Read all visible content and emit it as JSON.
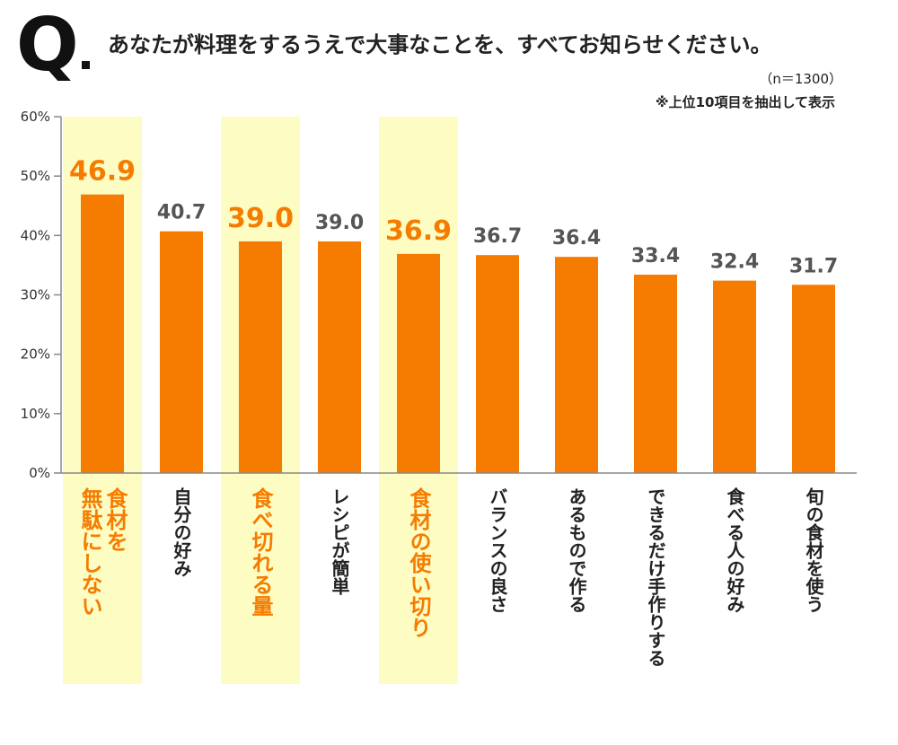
{
  "header": {
    "q_label": "Q",
    "title": "あなたが料理をするうえで大事なことを、すべてお知らせください。",
    "sample_size": "（n＝1300）",
    "note": "※上位10項目を抽出して表示"
  },
  "colors": {
    "bar": "#f57c00",
    "highlight_band": "#fdfcc2",
    "highlight_text": "#f57c00",
    "normal_value_text": "#555555",
    "normal_category_text": "#222222",
    "axis": "#888888"
  },
  "chart_data": {
    "type": "bar",
    "title": "あなたが料理をするうえで大事なことを、すべてお知らせください。",
    "xlabel": "",
    "ylabel": "",
    "ylim": [
      0,
      60
    ],
    "yticks": [
      0,
      10,
      20,
      30,
      40,
      50,
      60
    ],
    "ytick_labels": [
      "0%",
      "10%",
      "20%",
      "30%",
      "40%",
      "50%",
      "60%"
    ],
    "grid": false,
    "categories": [
      "食材を無駄にしない",
      "自分の好み",
      "食べ切れる量",
      "レシピが簡単",
      "食材の使い切り",
      "バランスの良さ",
      "あるもので作る",
      "できるだけ手作りする",
      "食べる人の好み",
      "旬の食材を使う"
    ],
    "category_lines": [
      [
        "食材を",
        "無駄にしない"
      ],
      [
        "自分の好み"
      ],
      [
        "食べ切れる量"
      ],
      [
        "レシピが簡単"
      ],
      [
        "食材の使い切り"
      ],
      [
        "バランスの良さ"
      ],
      [
        "あるもので作る"
      ],
      [
        "できるだけ手作りする"
      ],
      [
        "食べる人の好み"
      ],
      [
        "旬の食材を使う"
      ]
    ],
    "values": [
      46.9,
      40.7,
      39.0,
      39.0,
      36.9,
      36.7,
      36.4,
      33.4,
      32.4,
      31.7
    ],
    "value_labels": [
      "46.9",
      "40.7",
      "39.0",
      "39.0",
      "36.9",
      "36.7",
      "36.4",
      "33.4",
      "32.4",
      "31.7"
    ],
    "highlighted": [
      true,
      false,
      true,
      false,
      true,
      false,
      false,
      false,
      false,
      false
    ]
  }
}
